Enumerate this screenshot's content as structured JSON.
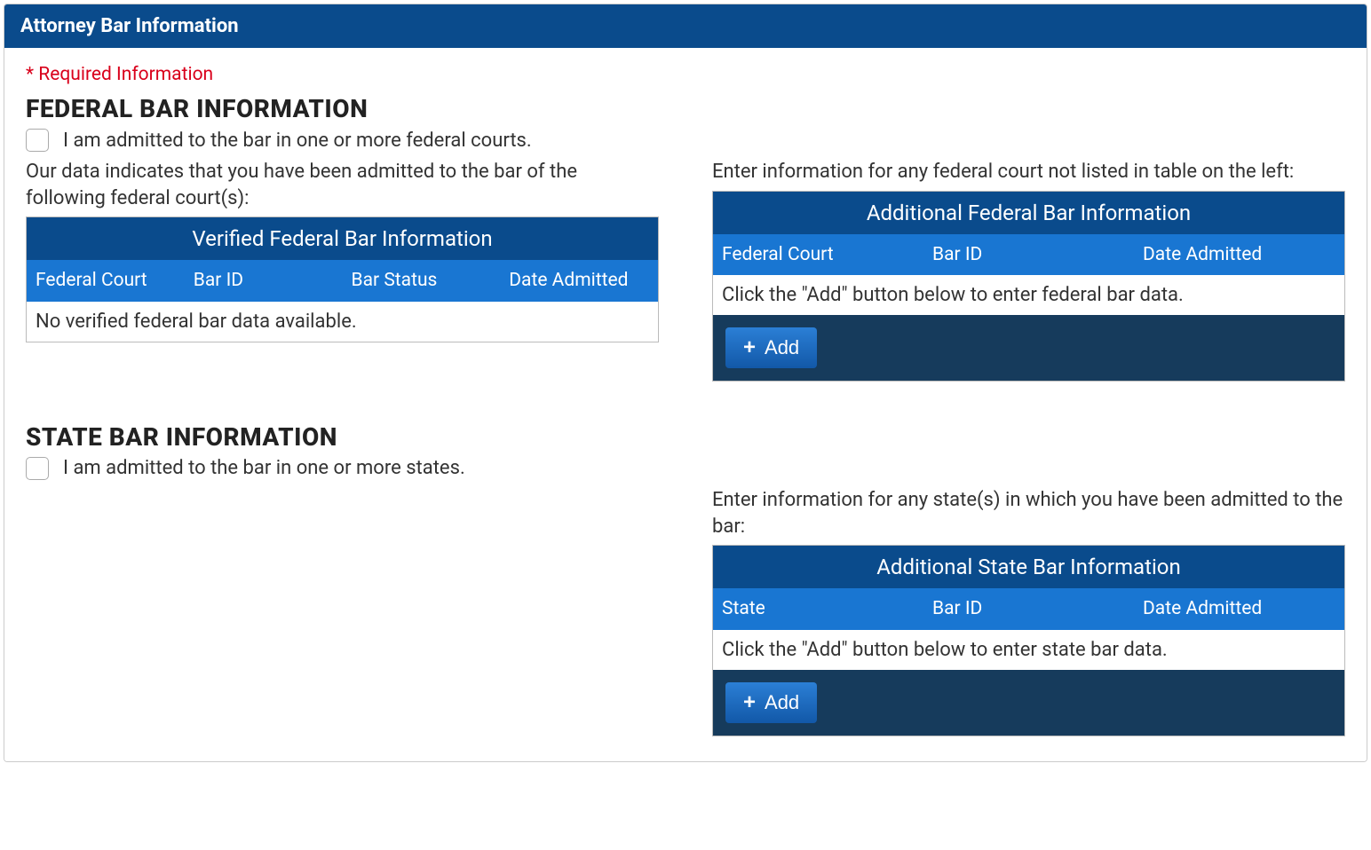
{
  "panel": {
    "title": "Attorney Bar Information"
  },
  "required_label": "* Required Information",
  "federal": {
    "section_title": "FEDERAL BAR INFORMATION",
    "checkbox_label": "I am admitted to the bar in one or more federal courts.",
    "left_intro": "Our data indicates that you have been admitted to the bar of the following federal court(s):",
    "right_intro": "Enter information for any federal court not listed in table on the left:",
    "verified_table": {
      "title": "Verified Federal Bar Information",
      "columns": [
        "Federal Court",
        "Bar ID",
        "Bar Status",
        "Date Admitted"
      ],
      "empty_message": "No verified federal bar data available."
    },
    "additional_table": {
      "title": "Additional Federal Bar Information",
      "columns": [
        "Federal Court",
        "Bar ID",
        "Date Admitted"
      ],
      "empty_message": "Click the \"Add\" button below to enter federal bar data.",
      "add_label": "Add"
    }
  },
  "state": {
    "section_title": "STATE BAR INFORMATION",
    "checkbox_label": "I am admitted to the bar in one or more states.",
    "right_intro": "Enter information for any state(s) in which you have been admitted to the bar:",
    "additional_table": {
      "title": "Additional State Bar Information",
      "columns": [
        "State",
        "Bar ID",
        "Date Admitted"
      ],
      "empty_message": "Click the \"Add\" button below to enter state bar data.",
      "add_label": "Add"
    }
  },
  "colors": {
    "header_bg": "#0a4b8c",
    "colhead_bg": "#1976d2",
    "footer_bg": "#163b5c",
    "required": "#d9001b",
    "btn_top": "#2b7fd6",
    "btn_bottom": "#1258a8"
  }
}
